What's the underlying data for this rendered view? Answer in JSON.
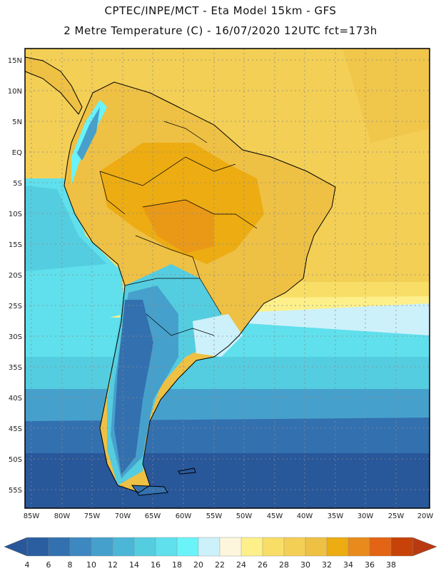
{
  "header": {
    "line1": "CPTEC/INPE/MCT -  Eta Model 15km - GFS",
    "line2": "2 Metre Temperature (C) - 16/07/2020 12UTC fct=173h"
  },
  "lat_ticks": [
    "15N",
    "10N",
    "5N",
    "EQ",
    "5S",
    "10S",
    "15S",
    "20S",
    "25S",
    "30S",
    "35S",
    "40S",
    "45S",
    "50S",
    "55S"
  ],
  "lon_ticks": [
    "85W",
    "80W",
    "75W",
    "70W",
    "65W",
    "60W",
    "55W",
    "50W",
    "45W",
    "40W",
    "35W",
    "30W",
    "25W",
    "20W"
  ],
  "colorbar": {
    "labels": [
      "4",
      "6",
      "8",
      "10",
      "12",
      "14",
      "16",
      "18",
      "20",
      "22",
      "24",
      "26",
      "28",
      "30",
      "32",
      "34",
      "36",
      "38"
    ],
    "colors": [
      "#2a5ea0",
      "#3370b0",
      "#3d88c0",
      "#46a0cc",
      "#4cb6d6",
      "#55cde0",
      "#5fe0ec",
      "#6af4fa",
      "#cdf1fb",
      "#fef6dc",
      "#fdf08a",
      "#f8de66",
      "#f3cf56",
      "#eec044",
      "#ecac12",
      "#e98a1c",
      "#e36414",
      "#c64208"
    ],
    "under_color": "#28579a",
    "over_color": "#b93a10"
  },
  "palette": {
    "ocean_south": "#28579a",
    "ocean_mid": "#46a0cc",
    "ocean_cool": "#55cde0",
    "ocean_warm": "#f3cf56",
    "land_hot": "#eec044",
    "land_very_hot": "#ecac12",
    "andes_cold": "#3370b0",
    "patagonia": "#2a5ea0"
  }
}
